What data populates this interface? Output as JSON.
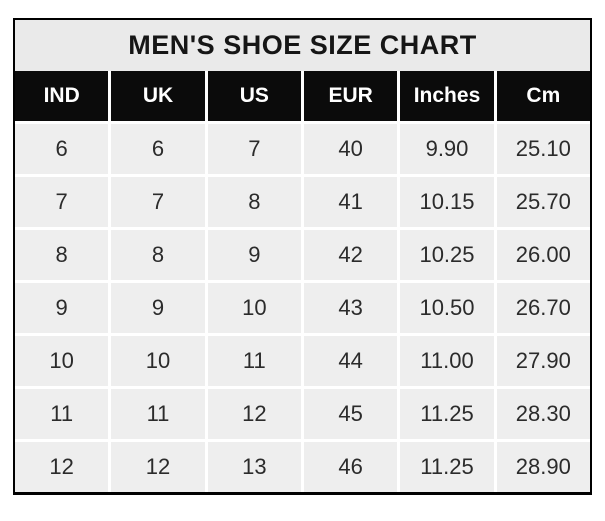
{
  "colors": {
    "title_bg": "#eaeaea",
    "title_text": "#161616",
    "header_bg": "#0b0b0b",
    "header_text": "#ffffff",
    "cell_bg": "#eeeeee",
    "cell_text": "#2b2b2b",
    "grid_line": "#ffffff",
    "border": "#000000"
  },
  "chart_data": {
    "type": "table",
    "title": "MEN'S SHOE SIZE CHART",
    "columns": [
      "IND",
      "UK",
      "US",
      "EUR",
      "Inches",
      "Cm"
    ],
    "rows": [
      [
        "6",
        "6",
        "7",
        "40",
        "9.90",
        "25.10"
      ],
      [
        "7",
        "7",
        "8",
        "41",
        "10.15",
        "25.70"
      ],
      [
        "8",
        "8",
        "9",
        "42",
        "10.25",
        "26.00"
      ],
      [
        "9",
        "9",
        "10",
        "43",
        "10.50",
        "26.70"
      ],
      [
        "10",
        "10",
        "11",
        "44",
        "11.00",
        "27.90"
      ],
      [
        "11",
        "11",
        "12",
        "45",
        "11.25",
        "28.30"
      ],
      [
        "12",
        "12",
        "13",
        "46",
        "11.25",
        "28.90"
      ]
    ]
  }
}
